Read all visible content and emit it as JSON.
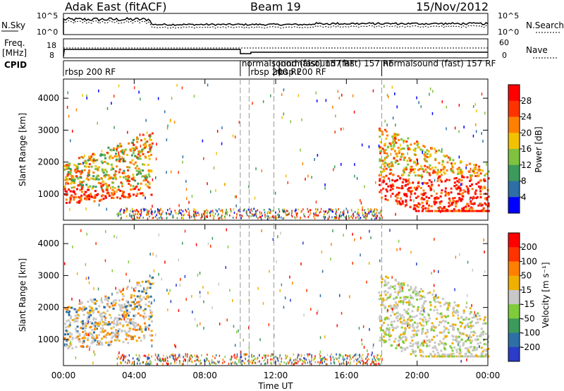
{
  "header": {
    "title": "Adak East (fitACF)",
    "beam": "Beam 19",
    "date": "15/Nov/2012"
  },
  "sky_panel": {
    "left_label": "N.Sky",
    "right_label": "N.Search",
    "left_ticks": [
      "10^5",
      "10^0"
    ],
    "right_ticks": [
      "10^5",
      "10^0"
    ]
  },
  "freq_panel": {
    "left_label_1": "Freq.",
    "left_label_2": "[MHz]",
    "left_ticks": [
      "18",
      "8"
    ],
    "right_label": "Nave",
    "right_ticks": [
      "60",
      "0"
    ]
  },
  "cpid": {
    "label": "CPID",
    "segments": [
      {
        "start_h": 0.0,
        "text": "rbsp 200 RF",
        "row": 1
      },
      {
        "start_h": 10.0,
        "text": "normalsound (fast) 157 RF",
        "row": 0
      },
      {
        "start_h": 10.5,
        "text": "rbsp 200 RF",
        "row": 1
      },
      {
        "start_h": 11.9,
        "text": "rbsp 200 RF",
        "row": 1
      },
      {
        "start_h": 12.2,
        "text": "normalsound (fast) 157 RF",
        "row": 0
      },
      {
        "start_h": 18.0,
        "text": "normalsound (fast) 157 RF",
        "row": 0
      }
    ]
  },
  "colors": {
    "power": [
      "#0000ff",
      "#2d6fa6",
      "#3c9a5c",
      "#7fc23e",
      "#f2c200",
      "#ff8000",
      "#ff3300",
      "#ff0000"
    ],
    "velocity": [
      "#2a3cc8",
      "#2d6fa6",
      "#3c9a5c",
      "#7fcc3a",
      "#c8c8c8",
      "#f0b000",
      "#ff8000",
      "#ff3300",
      "#ff0000"
    ]
  },
  "chart_data": [
    {
      "type": "heatmap",
      "panel": "power",
      "ylabel": "Slant Range [km]",
      "ylim": [
        180,
        4600
      ],
      "yticks": [
        1000,
        2000,
        3000,
        4000
      ],
      "xlim": [
        0,
        24
      ],
      "colorbar_label": "Power [dB]",
      "colorbar_ticks": [
        "4",
        "8",
        "12",
        "16",
        "20",
        "24",
        "28"
      ],
      "clim": [
        0,
        30
      ]
    },
    {
      "type": "heatmap",
      "panel": "velocity",
      "ylabel": "Slant Range [km]",
      "ylim": [
        180,
        4600
      ],
      "yticks": [
        1000,
        2000,
        3000,
        4000
      ],
      "xlim": [
        0,
        24
      ],
      "colorbar_label": "Velocity [m s⁻¹]",
      "colorbar_ticks": [
        "200",
        "100",
        "50",
        "15",
        "-15",
        "-50",
        "-100",
        "-200"
      ],
      "clim": [
        -250,
        250
      ]
    }
  ],
  "xaxis": {
    "label": "Time UT",
    "ticks": [
      "00:00",
      "04:00",
      "08:00",
      "12:00",
      "16:00",
      "20:00",
      "00:00"
    ]
  }
}
